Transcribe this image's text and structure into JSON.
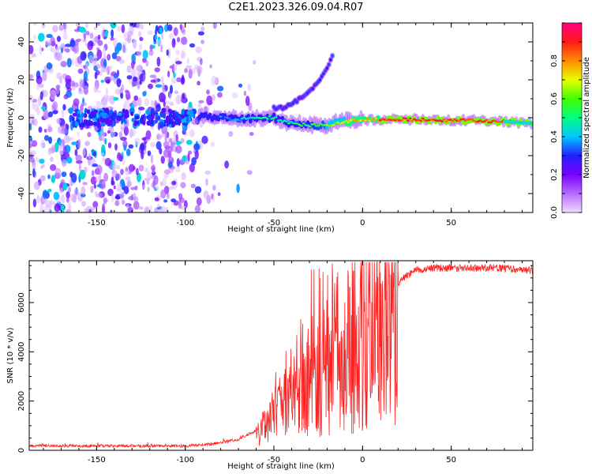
{
  "title": "C2E1.2023.326.09.04.R07",
  "chart_data": [
    {
      "type": "heatmap",
      "xlabel": "Height of straight line (km)",
      "ylabel": "Frequency (Hz)",
      "xlim": [
        -188,
        96
      ],
      "ylim": [
        -50,
        50
      ],
      "xticks": [
        -150,
        -100,
        -50,
        0,
        50
      ],
      "yticks": [
        -40,
        -20,
        0,
        20,
        40
      ],
      "colorbar": {
        "label": "Normalized spectral amplitude",
        "range": [
          0,
          1
        ],
        "ticks": [
          0.0,
          0.2,
          0.4,
          0.6,
          0.8
        ],
        "colors": [
          "#f0dcff",
          "#b56cff",
          "#7a00ff",
          "#2020ff",
          "#00c8ff",
          "#00ff80",
          "#40ff00",
          "#e8ff00",
          "#ff8c00",
          "#ff1a1a",
          "#ff0080"
        ]
      },
      "ridge": [
        {
          "x": -90,
          "y": 1
        },
        {
          "x": -80,
          "y": 0
        },
        {
          "x": -70,
          "y": -1
        },
        {
          "x": -60,
          "y": 0
        },
        {
          "x": -50,
          "y": 0
        },
        {
          "x": -40,
          "y": -3
        },
        {
          "x": -30,
          "y": -4
        },
        {
          "x": -20,
          "y": -4
        },
        {
          "x": -10,
          "y": -2
        },
        {
          "x": 0,
          "y": -1
        },
        {
          "x": 10,
          "y": -1
        },
        {
          "x": 30,
          "y": -1
        },
        {
          "x": 60,
          "y": -1.5
        },
        {
          "x": 80,
          "y": -2
        },
        {
          "x": 96,
          "y": -3
        }
      ],
      "branch": [
        {
          "x": -45,
          "y": 5
        },
        {
          "x": -35,
          "y": 10
        },
        {
          "x": -28,
          "y": 16
        },
        {
          "x": -24,
          "y": 20
        },
        {
          "x": -20,
          "y": 26
        },
        {
          "x": -17,
          "y": 32
        }
      ]
    },
    {
      "type": "line",
      "xlabel": "Height of straight line (km)",
      "ylabel": "SNR (10 * v/v)",
      "xlim": [
        -188,
        96
      ],
      "ylim": [
        0,
        7700
      ],
      "xticks": [
        -150,
        -100,
        -50,
        0,
        50
      ],
      "yticks": [
        0,
        2000,
        4000,
        6000
      ],
      "series": [
        {
          "color": "#ff2020",
          "envelope": [
            {
              "x": -188,
              "y": 180
            },
            {
              "x": -150,
              "y": 180
            },
            {
              "x": -100,
              "y": 180
            },
            {
              "x": -90,
              "y": 220
            },
            {
              "x": -80,
              "y": 300
            },
            {
              "x": -70,
              "y": 450
            },
            {
              "x": -60,
              "y": 800
            },
            {
              "x": -55,
              "y": 1300
            },
            {
              "x": -50,
              "y": 2000
            },
            {
              "x": -45,
              "y": 2400
            },
            {
              "x": -40,
              "y": 2700
            },
            {
              "x": -35,
              "y": 3000
            },
            {
              "x": -30,
              "y": 3300
            },
            {
              "x": -25,
              "y": 3500
            },
            {
              "x": -20,
              "y": 3700
            },
            {
              "x": -15,
              "y": 3900
            },
            {
              "x": -10,
              "y": 4100
            },
            {
              "x": -5,
              "y": 4400
            },
            {
              "x": 0,
              "y": 4800
            },
            {
              "x": 5,
              "y": 5300
            },
            {
              "x": 10,
              "y": 5900
            },
            {
              "x": 15,
              "y": 6400
            },
            {
              "x": 20,
              "y": 6800
            },
            {
              "x": 25,
              "y": 7100
            },
            {
              "x": 30,
              "y": 7300
            },
            {
              "x": 40,
              "y": 7400
            },
            {
              "x": 60,
              "y": 7400
            },
            {
              "x": 80,
              "y": 7400
            },
            {
              "x": 96,
              "y": 7300
            }
          ]
        }
      ]
    }
  ]
}
